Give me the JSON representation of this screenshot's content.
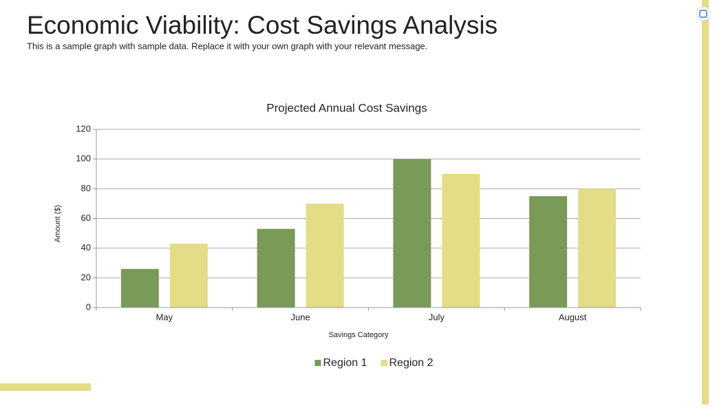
{
  "header": {
    "title": "Economic Viability: Cost Savings Analysis",
    "subtitle": "This is a sample graph with sample data. Replace it with your own graph with your relevant message."
  },
  "chart_data": {
    "type": "bar",
    "title": "Projected Annual Cost Savings",
    "x_label": "Savings Category",
    "y_label": "Amount ($)",
    "categories": [
      "May",
      "June",
      "July",
      "August"
    ],
    "series": [
      {
        "name": "Region 1",
        "color": "#7a9a58",
        "values": [
          26,
          53,
          100,
          75
        ]
      },
      {
        "name": "Region 2",
        "color": "#e2dd86",
        "values": [
          43,
          70,
          90,
          80
        ]
      }
    ],
    "ylim": [
      0,
      120
    ],
    "yticks": [
      0,
      20,
      40,
      60,
      80,
      100,
      120
    ],
    "grid": true,
    "legend": "bottom"
  }
}
